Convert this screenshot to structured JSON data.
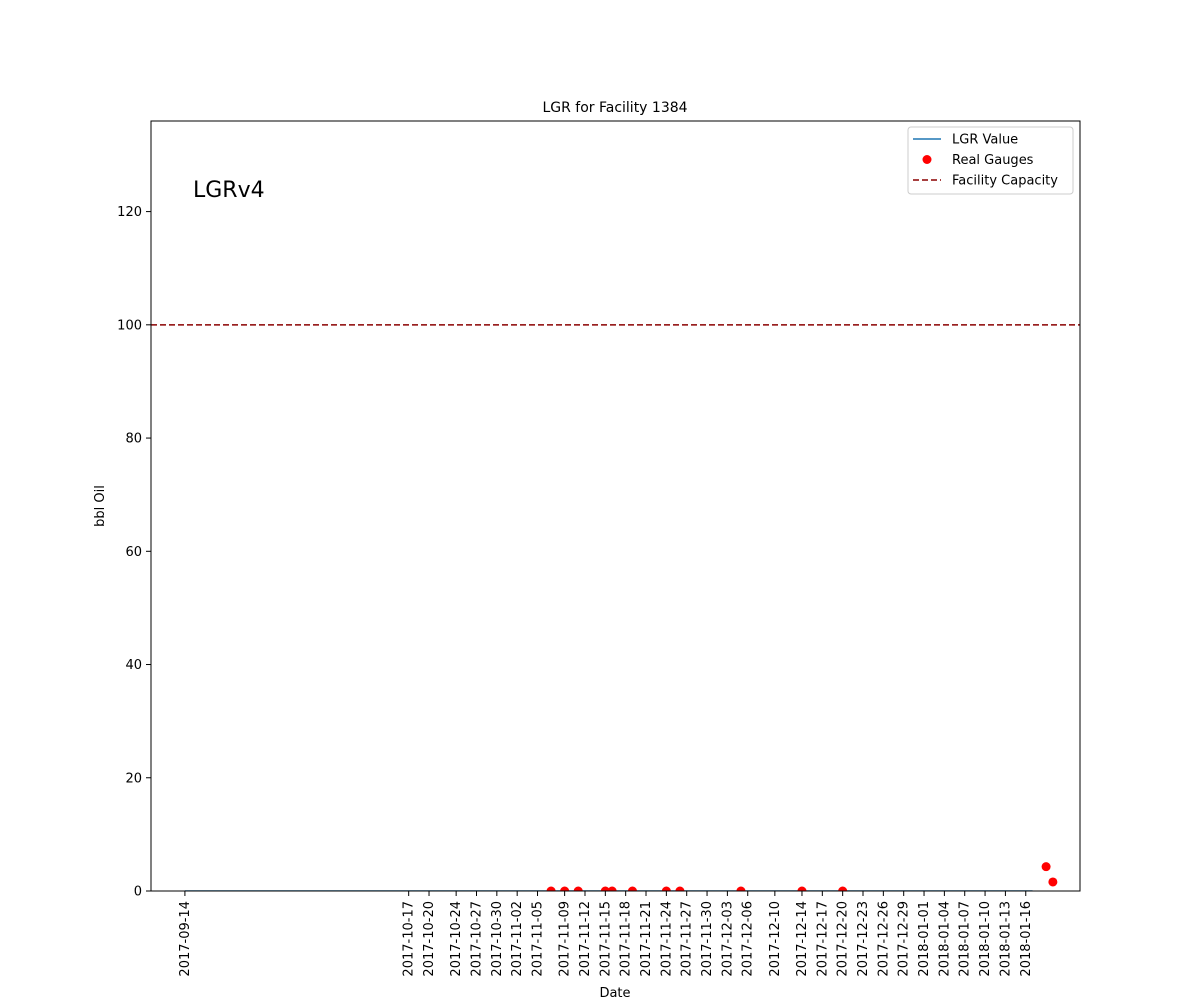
{
  "chart_data": {
    "type": "line",
    "title": "LGR for Facility 1384",
    "xlabel": "Date",
    "ylabel": "bbl Oil",
    "annotation": "LGRv4",
    "ylim": [
      0,
      136
    ],
    "xlim": [
      "2017-09-09",
      "2018-01-24"
    ],
    "yticks": [
      0,
      20,
      40,
      60,
      80,
      100,
      120
    ],
    "xticks": [
      "2017-09-14",
      "2017-10-17",
      "2017-10-20",
      "2017-10-24",
      "2017-10-27",
      "2017-10-30",
      "2017-11-02",
      "2017-11-05",
      "2017-11-09",
      "2017-11-12",
      "2017-11-15",
      "2017-11-18",
      "2017-11-21",
      "2017-11-24",
      "2017-11-27",
      "2017-11-30",
      "2017-12-03",
      "2017-12-06",
      "2017-12-10",
      "2017-12-14",
      "2017-12-17",
      "2017-12-20",
      "2017-12-23",
      "2017-12-26",
      "2017-12-29",
      "2018-01-01",
      "2018-01-04",
      "2018-01-07",
      "2018-01-10",
      "2018-01-13",
      "2018-01-16"
    ],
    "legend": {
      "position": "top-right",
      "entries": [
        {
          "label": "LGR Value",
          "kind": "line",
          "color": "#1f77b4"
        },
        {
          "label": "Real Gauges",
          "kind": "marker",
          "color": "#ff0000"
        },
        {
          "label": "Facility Capacity",
          "kind": "dashed",
          "color": "#8b0000"
        }
      ]
    },
    "series": [
      {
        "name": "LGR Value",
        "style": "line",
        "color": "#1f77b4",
        "points": [
          [
            "2017-09-14",
            0
          ],
          [
            "2018-01-17",
            0
          ]
        ]
      },
      {
        "name": "Real Gauges",
        "style": "scatter",
        "color": "#ff0000",
        "points": [
          [
            "2017-11-07",
            0
          ],
          [
            "2017-11-09",
            0
          ],
          [
            "2017-11-11",
            0
          ],
          [
            "2017-11-15",
            0
          ],
          [
            "2017-11-16",
            0
          ],
          [
            "2017-11-19",
            0
          ],
          [
            "2017-11-24",
            0
          ],
          [
            "2017-11-26",
            0
          ],
          [
            "2017-12-05",
            0
          ],
          [
            "2017-12-14",
            0
          ],
          [
            "2017-12-20",
            0
          ],
          [
            "2018-01-19",
            4.3
          ],
          [
            "2018-01-20",
            1.6
          ]
        ]
      },
      {
        "name": "Facility Capacity",
        "style": "hline",
        "color": "#8b0000",
        "value": 100
      }
    ]
  }
}
